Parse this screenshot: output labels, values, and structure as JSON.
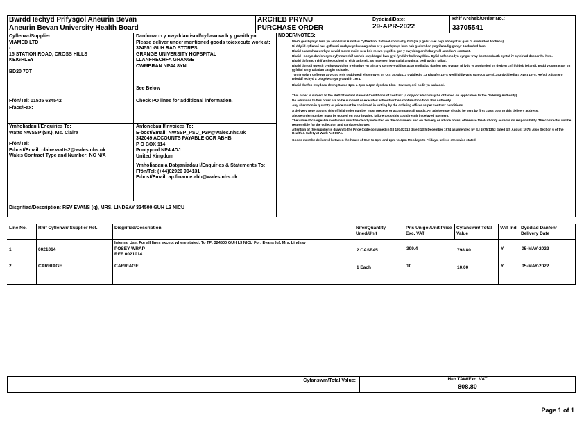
{
  "header": {
    "org_welsh": "Bwrdd Iechyd Prifysgol Aneurin Bevan",
    "org_english": "Aneurin Bevan University Health Board",
    "title_welsh": "ARCHEB PRYNU",
    "title_english": "PURCHASE ORDER",
    "date_label": "Dyddiad/Date:",
    "date": "29-APR-2022",
    "order_no_label": "Rhif Archeb/Order No.:",
    "order_no": "33705541"
  },
  "supplier": {
    "label": "Cyflenwr/Supplier:",
    "lines": [
      "VIAMED LTD",
      "-",
      "15 STATION ROAD, CROSS HILLS",
      "KEIGHLEY",
      "",
      "BD20 7DT"
    ],
    "tel": "Ffôn/Tel:  01535 634542",
    "fax": "Ffacs/Fax:"
  },
  "delivery": {
    "label": "Danfonwch y nwyddau isod/cyflawnwch y gwaith yn: Please deliver under mentioned goods to/execute work at:",
    "lines": [
      "324551 GUH RAD STORES",
      "GRANGE UNIVERSITY HOPSPITAL",
      "LLANFRECHFA GRANGE",
      "CWMBRAN NP44 8YN"
    ],
    "see_below": "See Below",
    "check": "Check PO lines for additional information."
  },
  "notes": {
    "label": "NODER/NOTES:",
    "welsh": [
      "Mae'r gorchymyn hwn yn amodol ar Amodau Cyffredinol Safonol contract y GIG (lle y gellir cael copi ohonynt ar gais i'r Awdurdod Archebu).",
      "Ni ddylid cyflenwi neu gyflawni unrhyw ychwanegiadau at y gorchymyn hwn heb gadarnhad ysgrifenedig gan yr Awdurdod hwn.",
      "Rhaid cadarnhau unrhyw newid mewn maint neu bris mewn ysgrifen gan y swyddog archebu yn ôl amodau'r contract.",
      "Rhaid i nodyn danfon sy'n dyfynnu'r rhif archeb swyddogol hwn gyd-fynd â'r holl nwyddau. Dylid anfon nodyn cyngor trwy bost dosbarth cyntaf i'r cyfeiriad dosbarthu hwn.",
      "Rhaid dyfynnu'r rhif archeb uchod ar eich anfoneb, os na wneir, hyn gallai arwain at oedi gyda'r taliad.",
      "Rhaid dynodi gwerth cynhwysyddion trethadwy yn glir ar y cynhwysyddion ac ar nodiadau danfon neu gyngor ni fydd yr Awdurdod yn derbyn cyfrifoldeb fel arall. Bydd y contractwr yn gyfrifol am y taliadau casglu a chario.",
      "Tynnir sylw'r cyflenwr at y Cod Pris sydd wedi ei gynnwys yn O.S 1974/2113 dyddiedig 13 Rhagfyr 1974 wedi'i ddiwygio gan O.S 1975/1353 dyddiedig 4 Awst 1975. Hefyd, Adran 6 o Ddeddf Iechyd a Diogelwch yn y Gwaith 1974.",
      "Rhaid danfon nwyddau rhwng 9am a 1pm a 2pm a 4pm dyddiau Llun i Gwener, oni nodir yn wahanol."
    ],
    "english": [
      "This order is subject to the NHS Standard General Conditions of contract (a copy of which may be obtained on application to the Ordering Authority)",
      "No additions to this order are to be supplied or executed without written confirmation from this Authority.",
      "Any alteration in quantity or price must be confirmed in writing by the ordering officer as per contract conditions.",
      "A delivery note quoting this official order number must precede or accompany all goods. An advice note should be sent by first class post to this delivery address.",
      "Above order number must be quoted on your invoice, failure to do this could result in delayed payment.",
      "The value of chargeable containers must be clearly indicated on the containers and on delivery or advice notes, otherwise the Authority accepts no responsibility. The contractor will be responsible for the collection and carriage charges.",
      "Attention of the supplier is drawn to the Price Code contained in S.I 1974/2113 dated 13th December 1974 as amended by S.I 1975/1353 dated 4th August 1975. Also Section 6 of the Health & Safety at Work Act 1974.",
      "Goods must be delivered between the hours of 9am to 1pm and 2pm to 4pm Mondays to Fridays, unless otherwise stated."
    ]
  },
  "enquiries": {
    "label": "Ymholiadau I/Enquiries To:",
    "name": "Watts NWSSP (SK), Ms. Claire",
    "tel": "Ffôn/Tel:",
    "email": "E-bost/Email: claire.watts2@wales.nhs.uk",
    "contract": "Wales Contract Type and Number: NC N/A"
  },
  "invoices": {
    "label": "Anfonebau I/Invoices To:",
    "lines": [
      "E-bost/Email: NWSSP_PSU_P2P@wales.nhs.uk",
      "342049 ACCOUNTS PAYABLE OCR ABHB",
      "P O BOX 114",
      "Pontypool NP4 4DJ",
      "United Kingdom"
    ],
    "statements_label": "Ymholiadau a Datganiadau I/Enquiries & Statements To:",
    "statements_tel": "Ffôn/Tel: (+44)02920 904131",
    "statements_email": "E-bost/Email: ap.finance.abb@wales.nhs.uk"
  },
  "description": "Disgrifiad/Description: REV EVANS (q), MRS. LINDSAY 324500 GUH L3 NICU",
  "table": {
    "headers": [
      "Line No.",
      "Rhif Cyflenwr/ Supplier Ref.",
      "Disgrifiad/Description",
      "Nifer/Quantity Uned/Unit",
      "Pris Unigol/Unit Price Exc. VAT",
      "Cyfanswm/ Total Value",
      "VAT Ind",
      "Dyddiad Danfon/ Delivery Date"
    ],
    "internal_use": "Internal Use: For all lines except where stated: To TP: 324500 GUH L3 NICU For: Evans (q), Mrs. Lindsay",
    "rows": [
      {
        "line": "1",
        "ref": "0021014",
        "desc1": "POSEY WRAP",
        "desc2": "REF 0021014",
        "qty": "2 CASE45",
        "price": "399.4",
        "total": "798.80",
        "vat": "Y",
        "date": "05-MAY-2022"
      },
      {
        "line": "2",
        "ref": "CARRIAGE",
        "desc1": "CARRIAGE",
        "desc2": "",
        "qty": "1 Each",
        "price": "10",
        "total": "10.00",
        "vat": "Y",
        "date": "05-MAY-2022"
      }
    ]
  },
  "totals": {
    "label": "Cyfanswm/Total Value:",
    "exc_label": "Heb TAW/Exc. VAT",
    "value": "808.80"
  },
  "footer": {
    "page": "Page 1 of 1"
  }
}
